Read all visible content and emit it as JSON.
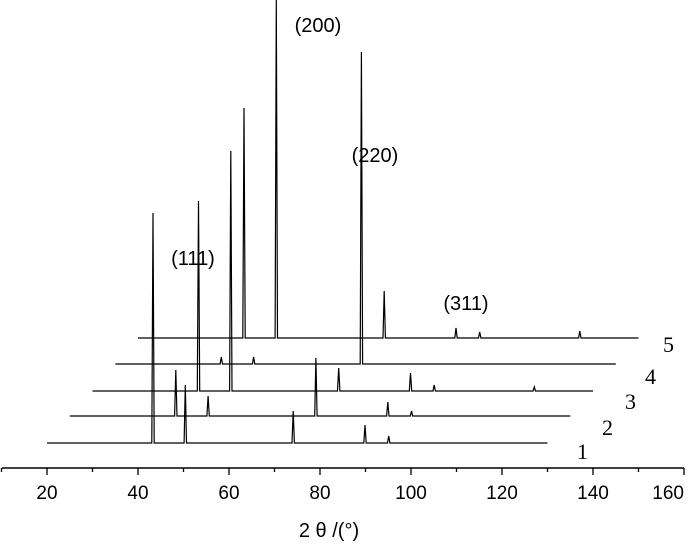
{
  "chart_data": {
    "type": "line",
    "title": "",
    "xlabel": "2 θ /(°)",
    "ylabel": "",
    "xlim": [
      10,
      160
    ],
    "x_ticks": [
      20,
      40,
      60,
      80,
      100,
      120,
      140,
      160
    ],
    "grid": false,
    "legend": "none",
    "series": [
      {
        "name": "1",
        "x_range": [
          20,
          130
        ],
        "peaks": [
          {
            "x": 43.3,
            "height": 230
          },
          {
            "x": 50.4,
            "height": 58
          },
          {
            "x": 74.1,
            "height": 32
          },
          {
            "x": 89.9,
            "height": 18
          },
          {
            "x": 95.1,
            "height": 7
          }
        ]
      },
      {
        "name": "2",
        "x_range": [
          25,
          135
        ],
        "peaks": [
          {
            "x": 48.3,
            "height": 46
          },
          {
            "x": 55.4,
            "height": 20
          },
          {
            "x": 79.1,
            "height": 58
          },
          {
            "x": 94.9,
            "height": 14
          },
          {
            "x": 100.1,
            "height": 5
          }
        ]
      },
      {
        "name": "3",
        "x_range": [
          30,
          140
        ],
        "peaks": [
          {
            "x": 53.3,
            "height": 190
          },
          {
            "x": 60.4,
            "height": 240
          },
          {
            "x": 84.1,
            "height": 23
          },
          {
            "x": 99.9,
            "height": 18
          },
          {
            "x": 105.1,
            "height": 6
          },
          {
            "x": 127.1,
            "height": 4
          }
        ]
      },
      {
        "name": "4",
        "x_range": [
          35,
          145
        ],
        "peaks": [
          {
            "x": 58.3,
            "height": 7
          },
          {
            "x": 65.4,
            "height": 7
          },
          {
            "x": 89.1,
            "height": 312
          }
        ]
      },
      {
        "name": "5",
        "x_range": [
          40,
          150
        ],
        "peaks": [
          {
            "x": 63.3,
            "height": 230
          },
          {
            "x": 70.4,
            "height": 338
          },
          {
            "x": 94.1,
            "height": 47
          },
          {
            "x": 109.9,
            "height": 10
          },
          {
            "x": 115.1,
            "height": 6
          },
          {
            "x": 137.1,
            "height": 7
          }
        ]
      }
    ],
    "annotations": [
      {
        "text": "(111)",
        "x": 53.3
      },
      {
        "text": "(200)",
        "x": 70.4
      },
      {
        "text": "(220)",
        "x": 89.1
      },
      {
        "text": "(311)",
        "x": 109.9
      }
    ]
  }
}
